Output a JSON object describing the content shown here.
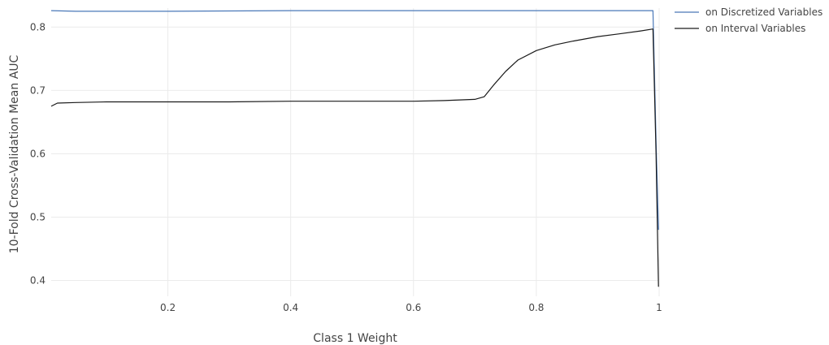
{
  "chart_data": {
    "type": "line",
    "title": "",
    "xlabel": "Class 1 Weight",
    "ylabel": "10-Fold Cross-Validation Mean AUC",
    "xlim": [
      0.01,
      1.0
    ],
    "ylim": [
      0.375,
      0.83
    ],
    "xticks": [
      0.2,
      0.4,
      0.6,
      0.8,
      1
    ],
    "xtick_labels": [
      "0.2",
      "0.4",
      "0.6",
      "0.8",
      "1"
    ],
    "yticks": [
      0.4,
      0.5,
      0.6,
      0.7,
      0.8
    ],
    "ytick_labels": [
      "0.4",
      "0.5",
      "0.6",
      "0.7",
      "0.8"
    ],
    "grid": true,
    "legend_position": "top-right",
    "series": [
      {
        "name": "on Discretized Variables",
        "color": "#4a78b8",
        "x": [
          0.01,
          0.05,
          0.2,
          0.4,
          0.6,
          0.8,
          0.98,
          0.99,
          0.995,
          0.999
        ],
        "y": [
          0.826,
          0.825,
          0.825,
          0.826,
          0.826,
          0.826,
          0.826,
          0.826,
          0.62,
          0.48
        ]
      },
      {
        "name": "on Interval Variables",
        "color": "#1a1a1a",
        "x": [
          0.01,
          0.02,
          0.05,
          0.1,
          0.2,
          0.3,
          0.4,
          0.5,
          0.6,
          0.65,
          0.7,
          0.715,
          0.73,
          0.75,
          0.77,
          0.8,
          0.83,
          0.86,
          0.9,
          0.94,
          0.97,
          0.99,
          0.995,
          0.999
        ],
        "y": [
          0.675,
          0.68,
          0.681,
          0.682,
          0.682,
          0.682,
          0.683,
          0.683,
          0.683,
          0.684,
          0.686,
          0.69,
          0.708,
          0.73,
          0.748,
          0.763,
          0.772,
          0.778,
          0.785,
          0.79,
          0.794,
          0.797,
          0.6,
          0.39
        ]
      }
    ]
  }
}
